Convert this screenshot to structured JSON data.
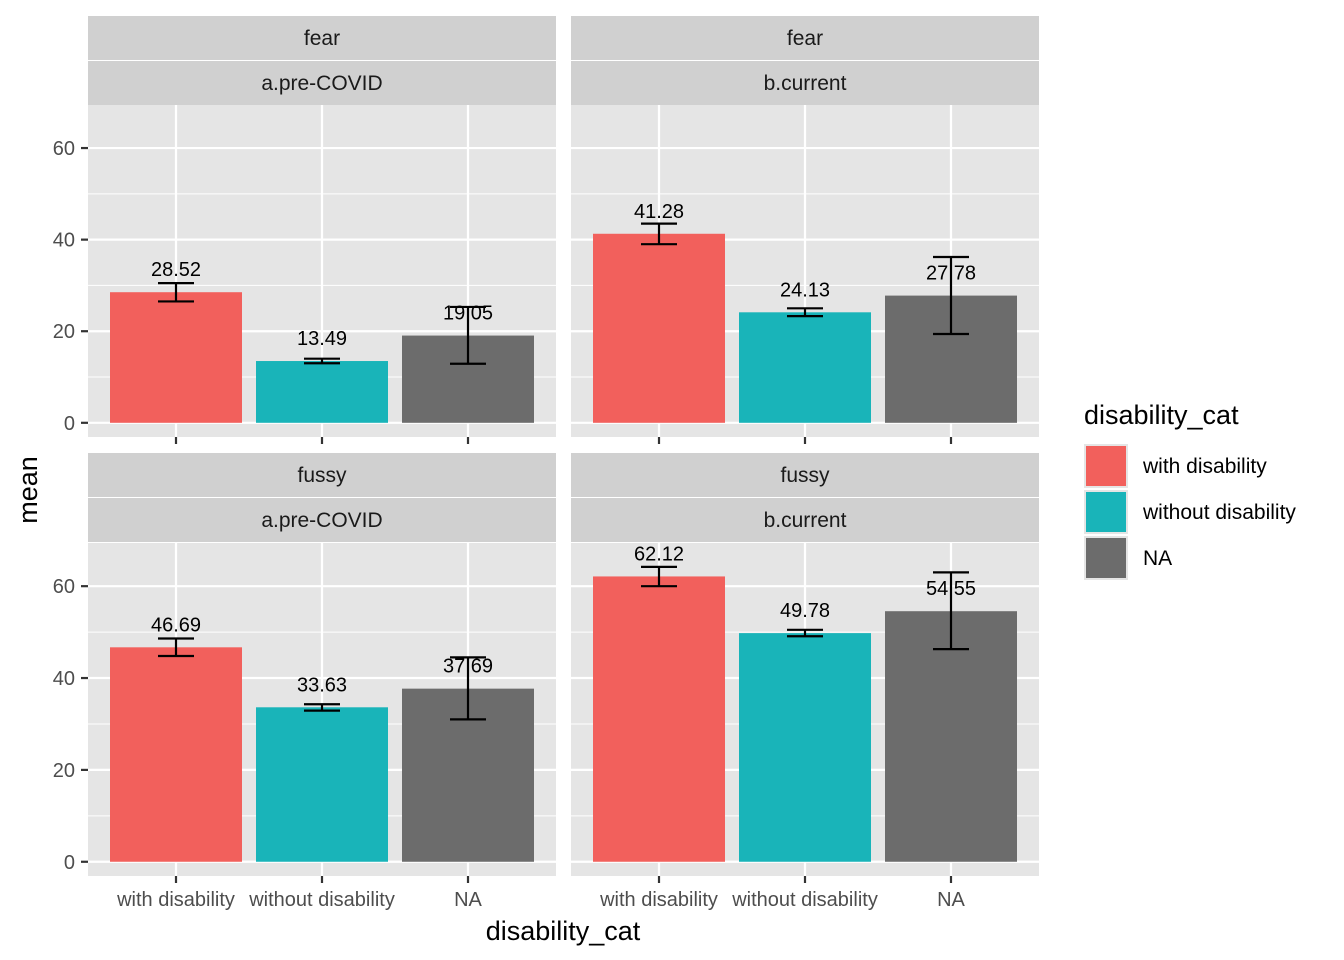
{
  "chart_data": {
    "type": "bar",
    "xlabel": "disability_cat",
    "ylabel": "mean",
    "ylim": [
      0,
      70
    ],
    "yticks": [
      0,
      20,
      40,
      60
    ],
    "categories": [
      "with disability",
      "without disability",
      "NA"
    ],
    "legend": {
      "title": "disability_cat",
      "position": "right",
      "entries": [
        {
          "label": "with disability",
          "color": "#F8766D"
        },
        {
          "label": "without disability",
          "color": "#00BFC4"
        },
        {
          "label": "NA",
          "color": "#666666"
        }
      ]
    },
    "colors": {
      "with_disability": "#F2605C",
      "without_disability": "#19B4B9",
      "na": "#6C6C6C",
      "panel_bg": "#E5E5E5",
      "strip_bg": "#D0D0D0",
      "grid": "#FFFFFF"
    },
    "panels": [
      {
        "strip_top": "fear",
        "strip_bottom": "a.pre-COVID",
        "values": [
          28.52,
          13.49,
          19.05
        ],
        "labels": [
          "28.52",
          "13.49",
          "19.05"
        ],
        "errors": [
          [
            26.5,
            30.5
          ],
          [
            13.0,
            14.0
          ],
          [
            12.9,
            25.3
          ]
        ]
      },
      {
        "strip_top": "fear",
        "strip_bottom": "b.current",
        "values": [
          41.28,
          24.13,
          27.78
        ],
        "labels": [
          "41.28",
          "24.13",
          "27.78"
        ],
        "errors": [
          [
            39.0,
            43.5
          ],
          [
            23.3,
            25.0
          ],
          [
            19.4,
            36.2
          ]
        ]
      },
      {
        "strip_top": "fussy",
        "strip_bottom": "a.pre-COVID",
        "values": [
          46.69,
          33.63,
          37.69
        ],
        "labels": [
          "46.69",
          "33.63",
          "37.69"
        ],
        "errors": [
          [
            44.8,
            48.6
          ],
          [
            32.9,
            34.3
          ],
          [
            31.0,
            44.5
          ]
        ]
      },
      {
        "strip_top": "fussy",
        "strip_bottom": "b.current",
        "values": [
          62.12,
          49.78,
          54.55
        ],
        "labels": [
          "62.12",
          "49.78",
          "54.55"
        ],
        "errors": [
          [
            60.0,
            64.2
          ],
          [
            49.1,
            50.5
          ],
          [
            46.3,
            63.0
          ]
        ]
      }
    ]
  }
}
